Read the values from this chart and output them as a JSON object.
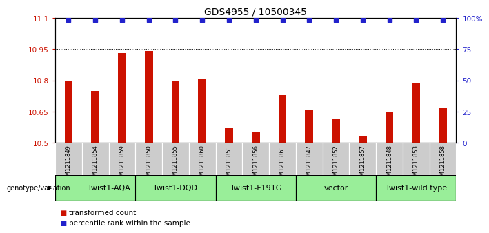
{
  "title": "GDS4955 / 10500345",
  "samples": [
    "GSM1211849",
    "GSM1211854",
    "GSM1211859",
    "GSM1211850",
    "GSM1211855",
    "GSM1211860",
    "GSM1211851",
    "GSM1211856",
    "GSM1211861",
    "GSM1211847",
    "GSM1211852",
    "GSM1211857",
    "GSM1211848",
    "GSM1211853",
    "GSM1211858"
  ],
  "bar_values": [
    10.8,
    10.75,
    10.93,
    10.94,
    10.8,
    10.81,
    10.57,
    10.555,
    10.73,
    10.655,
    10.615,
    10.535,
    10.645,
    10.79,
    10.67
  ],
  "bar_color": "#CC1100",
  "dot_color": "#2222CC",
  "ylim_left": [
    10.5,
    11.1
  ],
  "ylim_right": [
    0,
    100
  ],
  "yticks_left": [
    10.5,
    10.65,
    10.8,
    10.95,
    11.1
  ],
  "yticks_right": [
    0,
    25,
    50,
    75,
    100
  ],
  "ytick_labels_right": [
    "0",
    "25",
    "50",
    "75",
    "100%"
  ],
  "hlines": [
    10.65,
    10.8,
    10.95
  ],
  "group_defs": [
    [
      0,
      3,
      "Twist1-AQA"
    ],
    [
      3,
      5,
      "Twist1-DQD"
    ],
    [
      6,
      8,
      "Twist1-F191G"
    ],
    [
      9,
      11,
      "vector"
    ],
    [
      12,
      14,
      "Twist1-wild type"
    ]
  ],
  "group_color": "#99EE99",
  "sample_box_color": "#CCCCCC",
  "genotype_label": "genotype/variation",
  "legend_label_red": "transformed count",
  "legend_label_blue": "percentile rank within the sample",
  "title_fontsize": 10,
  "tick_fontsize": 7.5,
  "sample_fontsize": 6,
  "group_fontsize": 8
}
